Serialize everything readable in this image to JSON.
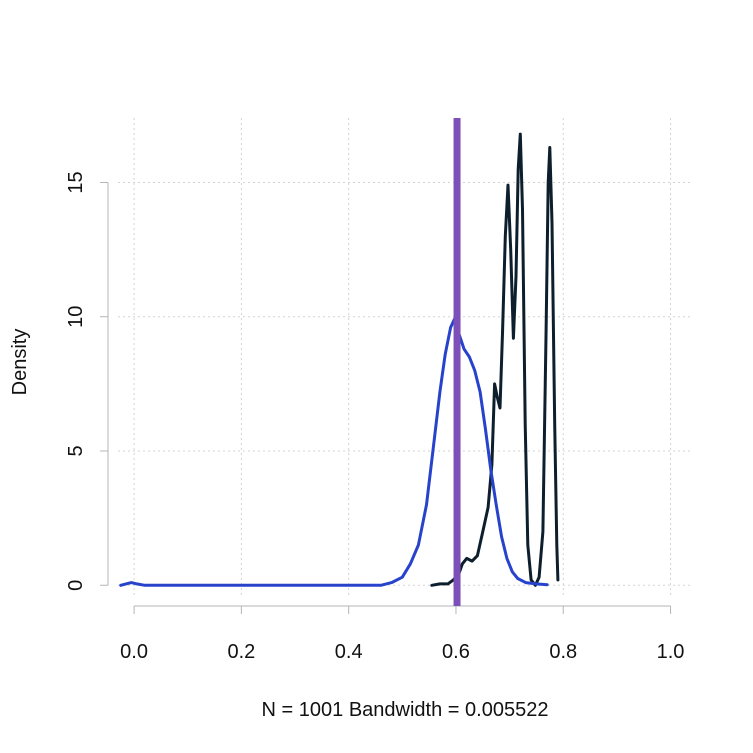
{
  "chart_data": {
    "type": "line",
    "title": "",
    "xlabel": "N = 1001   Bandwidth = 0.005522",
    "ylabel": "Density",
    "xlim": [
      -0.03,
      1.04
    ],
    "ylim": [
      -0.4,
      17.4
    ],
    "x_ticks": [
      0.0,
      0.2,
      0.4,
      0.6,
      0.8,
      1.0
    ],
    "x_tick_labels": [
      "0.0",
      "0.2",
      "0.4",
      "0.6",
      "0.8",
      "1.0"
    ],
    "y_ticks": [
      0,
      5,
      10,
      15
    ],
    "y_tick_labels": [
      "0",
      "5",
      "10",
      "15"
    ],
    "grid": true,
    "series": [
      {
        "color": "#0d1f2d",
        "points": [
          [
            0.555,
            0.0
          ],
          [
            0.57,
            0.05
          ],
          [
            0.585,
            0.05
          ],
          [
            0.595,
            0.2
          ],
          [
            0.605,
            0.4
          ],
          [
            0.612,
            0.8
          ],
          [
            0.62,
            1.0
          ],
          [
            0.63,
            0.9
          ],
          [
            0.64,
            1.1
          ],
          [
            0.65,
            2.0
          ],
          [
            0.66,
            2.9
          ],
          [
            0.667,
            4.5
          ],
          [
            0.672,
            7.5
          ],
          [
            0.677,
            7.0
          ],
          [
            0.682,
            6.6
          ],
          [
            0.687,
            9.5
          ],
          [
            0.692,
            13.0
          ],
          [
            0.697,
            14.9
          ],
          [
            0.702,
            12.5
          ],
          [
            0.707,
            9.2
          ],
          [
            0.712,
            11.5
          ],
          [
            0.716,
            15.5
          ],
          [
            0.72,
            16.8
          ],
          [
            0.724,
            14.0
          ],
          [
            0.729,
            6.0
          ],
          [
            0.734,
            1.5
          ],
          [
            0.74,
            0.2
          ],
          [
            0.748,
            0.0
          ],
          [
            0.755,
            0.3
          ],
          [
            0.762,
            2.0
          ],
          [
            0.768,
            9.5
          ],
          [
            0.772,
            15.0
          ],
          [
            0.775,
            16.3
          ],
          [
            0.779,
            13.5
          ],
          [
            0.784,
            6.0
          ],
          [
            0.788,
            1.5
          ],
          [
            0.79,
            0.2
          ]
        ]
      },
      {
        "color": "#2743cc",
        "points": [
          [
            -0.025,
            0.0
          ],
          [
            -0.015,
            0.05
          ],
          [
            -0.005,
            0.1
          ],
          [
            0.005,
            0.05
          ],
          [
            0.02,
            0.0
          ],
          [
            0.1,
            0.0
          ],
          [
            0.2,
            0.0
          ],
          [
            0.3,
            0.0
          ],
          [
            0.4,
            0.0
          ],
          [
            0.46,
            0.0
          ],
          [
            0.48,
            0.1
          ],
          [
            0.5,
            0.3
          ],
          [
            0.515,
            0.8
          ],
          [
            0.53,
            1.5
          ],
          [
            0.545,
            3.0
          ],
          [
            0.56,
            5.5
          ],
          [
            0.57,
            7.2
          ],
          [
            0.58,
            8.6
          ],
          [
            0.59,
            9.6
          ],
          [
            0.598,
            9.95
          ],
          [
            0.605,
            9.4
          ],
          [
            0.615,
            8.8
          ],
          [
            0.625,
            8.5
          ],
          [
            0.635,
            8.0
          ],
          [
            0.645,
            7.2
          ],
          [
            0.655,
            5.8
          ],
          [
            0.665,
            4.3
          ],
          [
            0.675,
            3.0
          ],
          [
            0.685,
            1.8
          ],
          [
            0.695,
            1.0
          ],
          [
            0.705,
            0.5
          ],
          [
            0.715,
            0.25
          ],
          [
            0.73,
            0.1
          ],
          [
            0.75,
            0.05
          ],
          [
            0.77,
            0.02
          ]
        ]
      }
    ],
    "reference_lines": [
      {
        "x": 0.602,
        "color": "#7d4fb8",
        "width": "thick"
      }
    ]
  }
}
